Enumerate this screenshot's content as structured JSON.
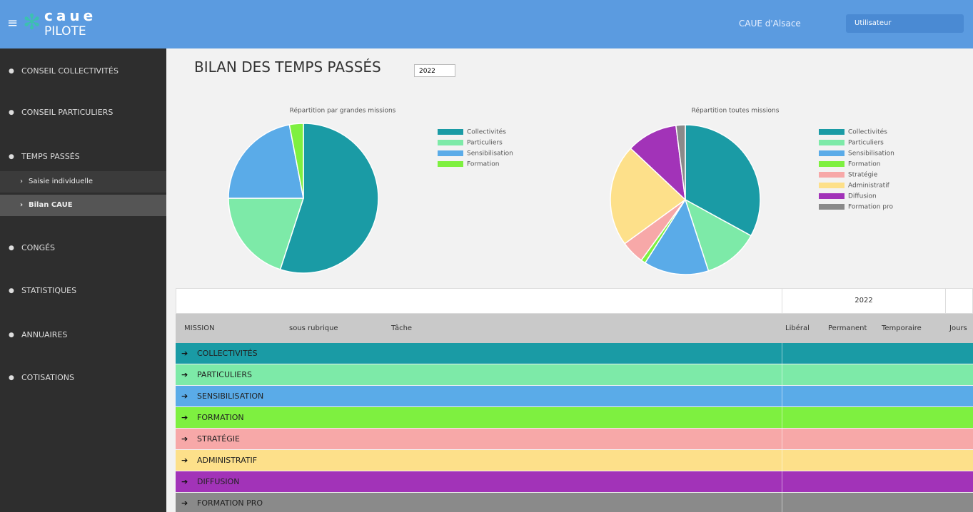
{
  "header": {
    "logo_top": "caue",
    "logo_bottom": "PILOTE",
    "org": "CAUE d'Alsace",
    "user": "Utilisateur"
  },
  "sidebar": [
    {
      "label": "CONSEIL COLLECTIVITÉS"
    },
    {
      "label": "CONSEIL PARTICULIERS"
    },
    {
      "label": "TEMPS PASSÉS",
      "children": [
        "Saisie individuelle",
        "Bilan CAUE"
      ]
    },
    {
      "label": "CONGÉS"
    },
    {
      "label": "STATISTIQUES"
    },
    {
      "label": "ANNUAIRES"
    },
    {
      "label": "COTISATIONS"
    }
  ],
  "page": {
    "title": "BILAN DES TEMPS PASSÉS",
    "year": "2022"
  },
  "chart_data": [
    {
      "type": "pie",
      "title": "Répartition par grandes missions",
      "categories": [
        "Collectivités",
        "Particuliers",
        "Sensibilisation",
        "Formation"
      ],
      "values": [
        55,
        20,
        22,
        3
      ],
      "colors": [
        "#1a9ba5",
        "#7deaa8",
        "#5aabe8",
        "#7ef040"
      ]
    },
    {
      "type": "pie",
      "title": "Répartition toutes missions",
      "categories": [
        "Collectivités",
        "Particuliers",
        "Sensibilisation",
        "Formation",
        "Stratégie",
        "Administratif",
        "Diffusion",
        "Formation pro"
      ],
      "values": [
        33,
        12,
        14,
        1,
        5,
        22,
        11,
        2
      ],
      "colors": [
        "#1a9ba5",
        "#7deaa8",
        "#5aabe8",
        "#7ef040",
        "#f7a8a8",
        "#fde08a",
        "#a233b8",
        "#8a8a8a"
      ]
    }
  ],
  "table": {
    "year": "2022",
    "columns": [
      "MISSION",
      "sous rubrique",
      "Tâche",
      "Libéral",
      "Permanent",
      "Temporaire",
      "Jours"
    ],
    "rows": [
      "COLLECTIVITÉS",
      "PARTICULIERS",
      "SENSIBILISATION",
      "FORMATION",
      "STRATÉGIE",
      "ADMINISTRATIF",
      "DIFFUSION",
      "FORMATION PRO"
    ],
    "row_colors": [
      "#1a9ba5",
      "#7deaa8",
      "#5aabe8",
      "#7ef040",
      "#f7a8a8",
      "#fde08a",
      "#a233b8",
      "#8a8a8a"
    ]
  }
}
